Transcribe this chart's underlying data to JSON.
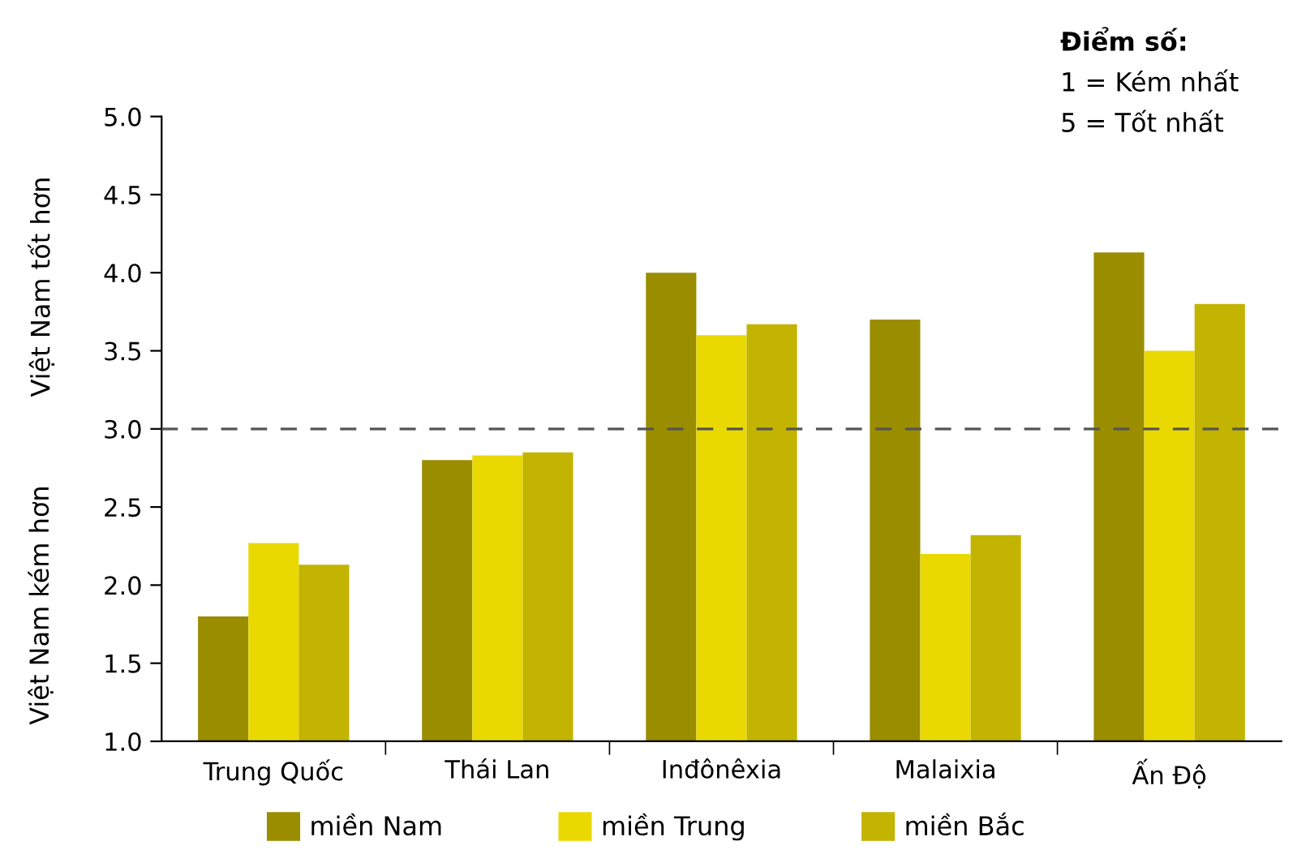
{
  "chart_data": {
    "type": "bar",
    "categories": [
      "Trung Quốc",
      "Thái Lan",
      "Inđônêxia",
      "Malaixia",
      "Ấn Độ"
    ],
    "series": [
      {
        "name": "miền Nam",
        "color": "#9a8d00",
        "values": [
          1.8,
          2.8,
          4.0,
          3.7,
          4.13
        ]
      },
      {
        "name": "miền Trung",
        "color": "#e9d900",
        "values": [
          2.27,
          2.83,
          3.6,
          2.2,
          3.5
        ]
      },
      {
        "name": "miền Bắc",
        "color": "#c2b400",
        "values": [
          2.13,
          2.85,
          3.67,
          2.32,
          3.8
        ]
      }
    ],
    "ylim": [
      1.0,
      5.0
    ],
    "yticks": [
      {
        "value": 1.0,
        "label": "1.0"
      },
      {
        "value": 1.5,
        "label": "1.5"
      },
      {
        "value": 2.0,
        "label": "2.0"
      },
      {
        "value": 2.5,
        "label": "2.5"
      },
      {
        "value": 3.0,
        "label": "3.0"
      },
      {
        "value": 3.5,
        "label": "3.5"
      },
      {
        "value": 4.0,
        "label": "4.0"
      },
      {
        "value": 4.5,
        "label": "4.5"
      },
      {
        "value": 5.0,
        "label": "5.0"
      }
    ],
    "ref_lines": [
      {
        "axis": "y",
        "value": 3.0,
        "color": "#555555",
        "line_style": "dashed"
      }
    ],
    "annotations": [
      "Việt Nam kém hơn",
      "Việt Nam tốt hơn",
      "Điểm số:",
      "1 = Kém nhất",
      "5 = Tốt nhất"
    ],
    "grid": false,
    "legend": "bottom"
  }
}
